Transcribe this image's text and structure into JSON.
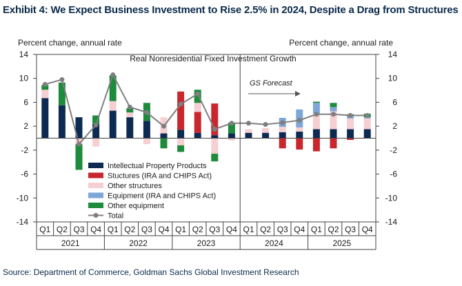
{
  "title": "Exhibit 4: We Expect Business Investment to Rise 2.5% in 2024, Despite a Drag from Structures",
  "source": "Source: Department of Commerce, Goldman Sachs Global Investment Research",
  "chart_data": {
    "type": "bar",
    "stacked": true,
    "title": "Real Nonresidential Fixed Investment Growth",
    "ylabel_left": "Percent change, annual rate",
    "ylabel_right": "Percent change, annual rate",
    "ylim": [
      -14,
      14
    ],
    "yticks": [
      14,
      10,
      6,
      2,
      -2,
      -6,
      -10,
      -14
    ],
    "annotation": "GS Forecast",
    "categories": [
      "Q1",
      "Q2",
      "Q3",
      "Q4",
      "Q1",
      "Q2",
      "Q3",
      "Q4",
      "Q1",
      "Q2",
      "Q3",
      "Q4",
      "Q1",
      "Q2",
      "Q3",
      "Q4",
      "Q1",
      "Q2",
      "Q3",
      "Q4"
    ],
    "years": [
      "2021",
      "2022",
      "2023",
      "2024",
      "2025"
    ],
    "legend": [
      "Intellectual Property Products",
      "Stuctures (IRA and CHIPS Act)",
      "Other structures",
      "Equipment (IRA and CHIPS Act)",
      "Other equipment",
      "Total"
    ],
    "colors": {
      "ipp": "#0d2b52",
      "structures_ira": "#c8282d",
      "other_structures": "#f6cfd2",
      "equipment_ira": "#7ea6d8",
      "other_equipment": "#1e8a3c",
      "total": "#7f7f7f"
    },
    "series": [
      {
        "name": "Intellectual Property Products",
        "key": "ipp",
        "values": [
          6.7,
          5.5,
          3.5,
          2.4,
          4.6,
          3.5,
          2.9,
          0.8,
          1.4,
          0.9,
          0.5,
          0.8,
          0.9,
          0.9,
          1.0,
          1.1,
          1.5,
          1.5,
          1.5,
          1.5
        ]
      },
      {
        "name": "Stuctures (IRA and CHIPS Act)",
        "key": "structures_ira",
        "values": [
          0,
          0,
          0,
          0,
          0,
          0,
          0,
          0,
          6.4,
          3.5,
          5.3,
          0,
          0,
          0,
          -1.7,
          -1.9,
          -2.2,
          -1.7,
          -0.3,
          0
        ]
      },
      {
        "name": "Other structures",
        "key": "other_structures",
        "values": [
          1.4,
          0,
          -1,
          -1.4,
          1.6,
          0.8,
          -1,
          2.7,
          -1.2,
          1.5,
          -2.6,
          -0.4,
          0.6,
          0.8,
          0.9,
          0.7,
          2.6,
          3.0,
          1.8,
          1.8
        ]
      },
      {
        "name": "Equipment (IRA and CHIPS Act)",
        "key": "equipment_ira",
        "values": [
          0,
          0,
          0,
          0,
          0,
          0,
          0,
          0,
          0,
          0,
          0,
          0,
          0,
          0,
          1.5,
          3.0,
          1.8,
          0.7,
          0.4,
          0.2
        ]
      },
      {
        "name": "Other equipment",
        "key": "other_equipment",
        "values": [
          0.8,
          3.8,
          -4.3,
          1.4,
          4.3,
          0.7,
          3.0,
          -1.7,
          -1.1,
          2.2,
          -1.4,
          1.8,
          0,
          0,
          0,
          0,
          0.2,
          0.7,
          0.3,
          0.6
        ]
      },
      {
        "name": "Total",
        "key": "total",
        "line": true,
        "values": [
          9.0,
          9.8,
          -1.0,
          2.2,
          10.6,
          5.2,
          4.3,
          2.0,
          5.7,
          7.4,
          1.5,
          2.5,
          2.5,
          2.3,
          2.6,
          3.0,
          4.0,
          4.0,
          3.8,
          3.8
        ]
      }
    ],
    "forecast_start_index": 12
  }
}
